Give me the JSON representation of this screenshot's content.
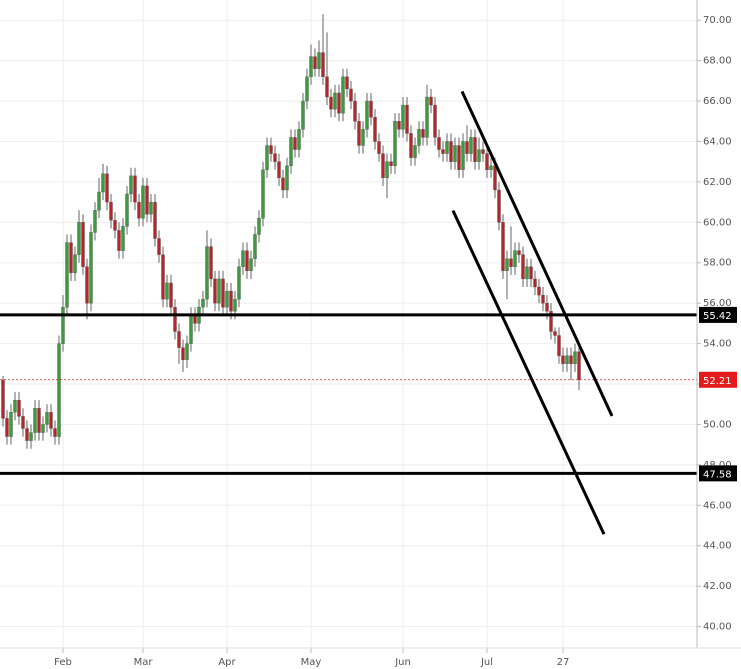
{
  "chart_data": {
    "type": "candlestick",
    "xlim": [
      -0.75,
      173.5
    ],
    "ylim": [
      37.9,
      71.0
    ],
    "xticks": [
      {
        "value": 15,
        "label": "Feb"
      },
      {
        "value": 35,
        "label": "Mar"
      },
      {
        "value": 56,
        "label": "Apr"
      },
      {
        "value": 77,
        "label": "May"
      },
      {
        "value": 100,
        "label": "Jun"
      },
      {
        "value": 121,
        "label": "Jul"
      },
      {
        "value": 140,
        "label": "27"
      }
    ],
    "yticks": [
      {
        "value": 40,
        "label": "40.00"
      },
      {
        "value": 42,
        "label": "42.00"
      },
      {
        "value": 44,
        "label": "44.00"
      },
      {
        "value": 46,
        "label": "46.00"
      },
      {
        "value": 48,
        "label": "48.00"
      },
      {
        "value": 50,
        "label": "50.00"
      },
      {
        "value": 52,
        "label": "52.00"
      },
      {
        "value": 54,
        "label": "54.00"
      },
      {
        "value": 56,
        "label": "56.00"
      },
      {
        "value": 58,
        "label": "58.00"
      },
      {
        "value": 60,
        "label": "60.00"
      },
      {
        "value": 62,
        "label": "62.00"
      },
      {
        "value": 64,
        "label": "64.00"
      },
      {
        "value": 66,
        "label": "66.00"
      },
      {
        "value": 68,
        "label": "68.00"
      },
      {
        "value": 70,
        "label": "70.00"
      }
    ],
    "grid": true,
    "up_color": "#3a9c3a",
    "down_color": "#b5262b",
    "levels": [
      55.42,
      47.58
    ],
    "price_line": 52.21,
    "price_color": "#e31b1b",
    "trendlines": [
      {
        "x": [
          114.75,
          152.25
        ],
        "y": [
          66.48,
          50.42
        ]
      },
      {
        "x": [
          112.5,
          150.25
        ],
        "y": [
          60.58,
          44.57
        ]
      }
    ],
    "candles": [
      [
        52.2,
        52.4,
        49.9,
        50.3
      ],
      [
        50.3,
        50.7,
        49.0,
        49.4
      ],
      [
        49.4,
        51.0,
        49.0,
        50.6
      ],
      [
        50.6,
        51.6,
        50.2,
        51.2
      ],
      [
        51.2,
        51.6,
        50.0,
        50.4
      ],
      [
        50.4,
        50.8,
        49.4,
        49.8
      ],
      [
        49.8,
        50.2,
        48.8,
        49.2
      ],
      [
        49.2,
        50.0,
        48.8,
        49.6
      ],
      [
        49.6,
        51.2,
        49.2,
        50.8
      ],
      [
        50.8,
        51.2,
        49.2,
        49.6
      ],
      [
        49.6,
        50.4,
        49.2,
        50.0
      ],
      [
        50.0,
        51.0,
        49.6,
        50.6
      ],
      [
        50.6,
        51.0,
        49.4,
        49.8
      ],
      [
        49.8,
        50.2,
        49.0,
        49.4
      ],
      [
        49.4,
        54.4,
        49.0,
        54.0
      ],
      [
        54.0,
        56.4,
        53.6,
        55.8
      ],
      [
        55.8,
        59.4,
        55.4,
        59.0
      ],
      [
        59.0,
        59.4,
        57.1,
        57.5
      ],
      [
        57.5,
        58.8,
        57.1,
        58.4
      ],
      [
        58.4,
        60.6,
        58.0,
        60.0
      ],
      [
        60.0,
        60.4,
        57.4,
        57.8
      ],
      [
        57.8,
        58.2,
        55.2,
        56.0
      ],
      [
        56.0,
        59.9,
        55.6,
        59.5
      ],
      [
        59.5,
        61.0,
        59.1,
        60.6
      ],
      [
        60.6,
        62.2,
        60.2,
        61.5
      ],
      [
        61.5,
        62.9,
        61.1,
        62.4
      ],
      [
        62.4,
        62.8,
        60.6,
        61.0
      ],
      [
        61.0,
        61.4,
        59.7,
        60.1
      ],
      [
        60.1,
        60.5,
        59.2,
        59.6
      ],
      [
        59.6,
        60.0,
        58.2,
        58.6
      ],
      [
        58.6,
        60.2,
        58.2,
        59.8
      ],
      [
        59.8,
        61.8,
        59.4,
        61.4
      ],
      [
        61.4,
        62.7,
        61.0,
        62.3
      ],
      [
        62.3,
        62.7,
        60.6,
        61.0
      ],
      [
        61.0,
        61.4,
        59.8,
        60.2
      ],
      [
        60.2,
        62.2,
        59.8,
        61.8
      ],
      [
        61.8,
        62.2,
        60.0,
        60.4
      ],
      [
        60.4,
        61.4,
        60.0,
        61.0
      ],
      [
        61.0,
        61.4,
        58.8,
        59.2
      ],
      [
        59.2,
        59.6,
        58.0,
        58.4
      ],
      [
        58.4,
        58.8,
        55.8,
        56.2
      ],
      [
        56.2,
        57.4,
        55.8,
        57.0
      ],
      [
        57.0,
        57.4,
        55.4,
        55.8
      ],
      [
        55.8,
        56.2,
        54.2,
        54.6
      ],
      [
        54.6,
        55.0,
        53.0,
        53.8
      ],
      [
        53.8,
        54.2,
        52.6,
        53.2
      ],
      [
        53.2,
        54.4,
        52.8,
        54.0
      ],
      [
        54.0,
        55.8,
        53.6,
        55.4
      ],
      [
        55.4,
        55.8,
        54.6,
        55.0
      ],
      [
        55.0,
        56.2,
        54.6,
        55.8
      ],
      [
        55.8,
        56.6,
        55.4,
        56.2
      ],
      [
        56.2,
        59.6,
        55.8,
        58.8
      ],
      [
        58.8,
        59.2,
        56.8,
        57.2
      ],
      [
        57.2,
        57.6,
        55.6,
        56.0
      ],
      [
        56.0,
        57.6,
        55.6,
        57.2
      ],
      [
        57.2,
        57.6,
        55.4,
        55.8
      ],
      [
        55.8,
        57.0,
        55.4,
        56.6
      ],
      [
        56.6,
        57.0,
        55.2,
        55.6
      ],
      [
        55.6,
        56.6,
        55.2,
        56.2
      ],
      [
        56.2,
        58.2,
        55.8,
        57.8
      ],
      [
        57.8,
        59.0,
        57.4,
        58.6
      ],
      [
        58.6,
        59.0,
        57.2,
        57.6
      ],
      [
        57.6,
        58.6,
        57.2,
        58.2
      ],
      [
        58.2,
        59.8,
        57.8,
        59.4
      ],
      [
        59.4,
        60.6,
        59.0,
        60.2
      ],
      [
        60.2,
        63.0,
        59.8,
        62.6
      ],
      [
        62.6,
        64.2,
        62.2,
        63.8
      ],
      [
        63.8,
        64.2,
        63.0,
        63.4
      ],
      [
        63.4,
        63.8,
        62.6,
        63.0
      ],
      [
        63.0,
        63.4,
        61.8,
        62.2
      ],
      [
        62.2,
        62.6,
        61.2,
        61.6
      ],
      [
        61.6,
        63.2,
        61.2,
        62.8
      ],
      [
        62.8,
        64.6,
        62.4,
        64.2
      ],
      [
        64.2,
        64.6,
        63.2,
        63.6
      ],
      [
        63.6,
        65.0,
        63.2,
        64.6
      ],
      [
        64.6,
        66.4,
        64.2,
        66.0
      ],
      [
        66.0,
        67.6,
        65.6,
        67.2
      ],
      [
        67.2,
        68.8,
        66.8,
        68.2
      ],
      [
        68.2,
        68.6,
        67.2,
        67.6
      ],
      [
        67.6,
        69.0,
        67.2,
        68.4
      ],
      [
        68.4,
        70.3,
        66.8,
        67.2
      ],
      [
        67.2,
        69.4,
        65.8,
        66.2
      ],
      [
        66.2,
        66.6,
        65.2,
        65.6
      ],
      [
        65.6,
        66.8,
        65.2,
        66.4
      ],
      [
        66.4,
        66.8,
        65.0,
        65.4
      ],
      [
        65.4,
        67.6,
        65.0,
        67.2
      ],
      [
        67.2,
        67.6,
        66.2,
        66.6
      ],
      [
        66.6,
        67.0,
        65.6,
        66.0
      ],
      [
        66.0,
        66.4,
        64.6,
        65.0
      ],
      [
        65.0,
        65.4,
        63.4,
        63.8
      ],
      [
        63.8,
        65.0,
        63.4,
        64.6
      ],
      [
        64.6,
        66.4,
        64.2,
        66.0
      ],
      [
        66.0,
        66.4,
        64.8,
        65.2
      ],
      [
        65.2,
        65.6,
        63.6,
        64.0
      ],
      [
        64.0,
        64.4,
        63.0,
        63.4
      ],
      [
        63.4,
        63.8,
        61.8,
        62.2
      ],
      [
        62.2,
        63.4,
        61.2,
        63.0
      ],
      [
        63.0,
        63.4,
        62.4,
        62.8
      ],
      [
        62.8,
        65.4,
        62.4,
        65.0
      ],
      [
        65.0,
        65.4,
        64.2,
        64.6
      ],
      [
        64.6,
        66.2,
        64.2,
        65.8
      ],
      [
        65.8,
        66.2,
        64.0,
        64.4
      ],
      [
        64.4,
        64.8,
        62.8,
        63.2
      ],
      [
        63.2,
        64.2,
        62.8,
        63.8
      ],
      [
        63.8,
        65.0,
        63.4,
        64.6
      ],
      [
        64.6,
        65.0,
        63.8,
        64.2
      ],
      [
        64.2,
        66.8,
        63.8,
        66.2
      ],
      [
        66.2,
        66.6,
        65.4,
        65.8
      ],
      [
        65.8,
        66.2,
        63.8,
        64.2
      ],
      [
        64.2,
        64.6,
        63.2,
        63.6
      ],
      [
        63.6,
        64.0,
        63.0,
        63.4
      ],
      [
        63.4,
        64.4,
        63.0,
        64.0
      ],
      [
        64.0,
        64.4,
        62.6,
        63.0
      ],
      [
        63.0,
        64.2,
        62.6,
        63.8
      ],
      [
        63.8,
        64.2,
        62.2,
        62.6
      ],
      [
        62.6,
        64.4,
        62.2,
        64.0
      ],
      [
        64.0,
        64.8,
        63.0,
        63.4
      ],
      [
        63.4,
        64.6,
        63.0,
        64.2
      ],
      [
        64.2,
        64.6,
        62.6,
        63.0
      ],
      [
        63.0,
        64.2,
        62.6,
        63.6
      ],
      [
        63.6,
        64.0,
        63.0,
        63.4
      ],
      [
        63.4,
        63.8,
        62.2,
        62.6
      ],
      [
        62.6,
        63.2,
        62.2,
        62.8
      ],
      [
        62.8,
        63.2,
        61.2,
        61.6
      ],
      [
        61.6,
        62.0,
        59.6,
        60.0
      ],
      [
        60.0,
        60.4,
        57.2,
        57.6
      ],
      [
        57.6,
        58.6,
        56.2,
        58.2
      ],
      [
        58.2,
        59.8,
        57.4,
        57.8
      ],
      [
        57.8,
        59.0,
        57.4,
        58.6
      ],
      [
        58.6,
        59.0,
        58.0,
        58.4
      ],
      [
        58.4,
        58.8,
        56.8,
        57.2
      ],
      [
        57.2,
        58.2,
        56.8,
        57.8
      ],
      [
        57.8,
        58.2,
        56.8,
        57.2
      ],
      [
        57.2,
        57.6,
        56.4,
        56.8
      ],
      [
        56.8,
        57.2,
        56.0,
        56.4
      ],
      [
        56.4,
        56.8,
        55.6,
        56.0
      ],
      [
        56.0,
        56.4,
        55.2,
        55.6
      ],
      [
        55.6,
        56.0,
        54.2,
        54.6
      ],
      [
        54.6,
        54.8,
        54.0,
        54.4
      ],
      [
        54.4,
        54.8,
        53.0,
        53.4
      ],
      [
        53.4,
        53.8,
        52.6,
        53.0
      ],
      [
        53.0,
        53.8,
        52.6,
        53.4
      ],
      [
        53.4,
        53.8,
        52.2,
        53.0
      ],
      [
        53.0,
        54.0,
        52.6,
        53.6
      ],
      [
        53.6,
        53.8,
        51.7,
        52.21
      ]
    ]
  }
}
